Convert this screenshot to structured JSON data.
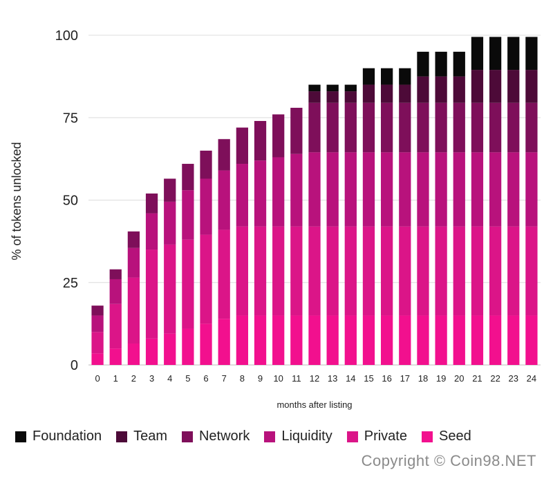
{
  "chart_data": {
    "type": "bar",
    "stacked": true,
    "title": "",
    "xlabel": "months after listing",
    "ylabel": "% of tokens unlocked",
    "ylim": [
      0,
      100
    ],
    "yticks": [
      "0",
      "25",
      "50",
      "75",
      "100"
    ],
    "grid": true,
    "legend_position": "bottom",
    "categories": [
      "0",
      "1",
      "2",
      "3",
      "4",
      "5",
      "6",
      "7",
      "8",
      "9",
      "10",
      "11",
      "12",
      "13",
      "14",
      "15",
      "16",
      "17",
      "18",
      "19",
      "20",
      "21",
      "22",
      "23",
      "24"
    ],
    "series": [
      {
        "name": "Seed",
        "color": "#f2108e",
        "values": [
          3.5,
          5,
          6.5,
          8,
          9.5,
          11,
          12.5,
          14,
          15,
          15,
          15,
          15,
          15,
          15,
          15,
          15,
          15,
          15,
          15,
          15,
          15,
          15,
          15,
          15,
          15
        ]
      },
      {
        "name": "Private",
        "color": "#db1588",
        "values": [
          6.5,
          13.5,
          20,
          27,
          27,
          27,
          27,
          27,
          27,
          27,
          27,
          27,
          27,
          27,
          27,
          27,
          27,
          27,
          27,
          27,
          27,
          27,
          27,
          27,
          27
        ]
      },
      {
        "name": "Liquidity",
        "color": "#b8127c",
        "values": [
          5,
          7.5,
          9,
          11,
          13,
          15,
          17,
          18,
          19,
          20,
          21,
          22,
          22.5,
          22.5,
          22.5,
          22.5,
          22.5,
          22.5,
          22.5,
          22.5,
          22.5,
          22.5,
          22.5,
          22.5,
          22.5
        ]
      },
      {
        "name": "Network",
        "color": "#7e0f5a",
        "values": [
          3,
          3,
          5,
          6,
          7,
          8,
          8.5,
          9.5,
          11,
          12,
          13,
          14,
          15,
          15,
          15,
          15,
          15,
          15,
          15,
          15,
          15,
          15,
          15,
          15,
          15
        ]
      },
      {
        "name": "Team",
        "color": "#4d0a38",
        "values": [
          0,
          0,
          0,
          0,
          0,
          0,
          0,
          0,
          0,
          0,
          0,
          0,
          3.5,
          3.5,
          3.5,
          5.5,
          5.5,
          5.5,
          8,
          8,
          8,
          10,
          10,
          10,
          10
        ]
      },
      {
        "name": "Foundation",
        "color": "#0a0a0a",
        "values": [
          0,
          0,
          0,
          0,
          0,
          0,
          0,
          0,
          0,
          0,
          0,
          0,
          2,
          2,
          2,
          5,
          5,
          5,
          7.5,
          7.5,
          7.5,
          10,
          10,
          10,
          10
        ]
      }
    ]
  },
  "legend": {
    "items": [
      {
        "label": "Foundation",
        "color": "#0a0a0a"
      },
      {
        "label": "Team",
        "color": "#4d0a38"
      },
      {
        "label": "Network",
        "color": "#7e0f5a"
      },
      {
        "label": "Liquidity",
        "color": "#b8127c"
      },
      {
        "label": "Private",
        "color": "#db1588"
      },
      {
        "label": "Seed",
        "color": "#f2108e"
      }
    ]
  },
  "watermark": {
    "text": "Copyright © Coin98.NET"
  }
}
